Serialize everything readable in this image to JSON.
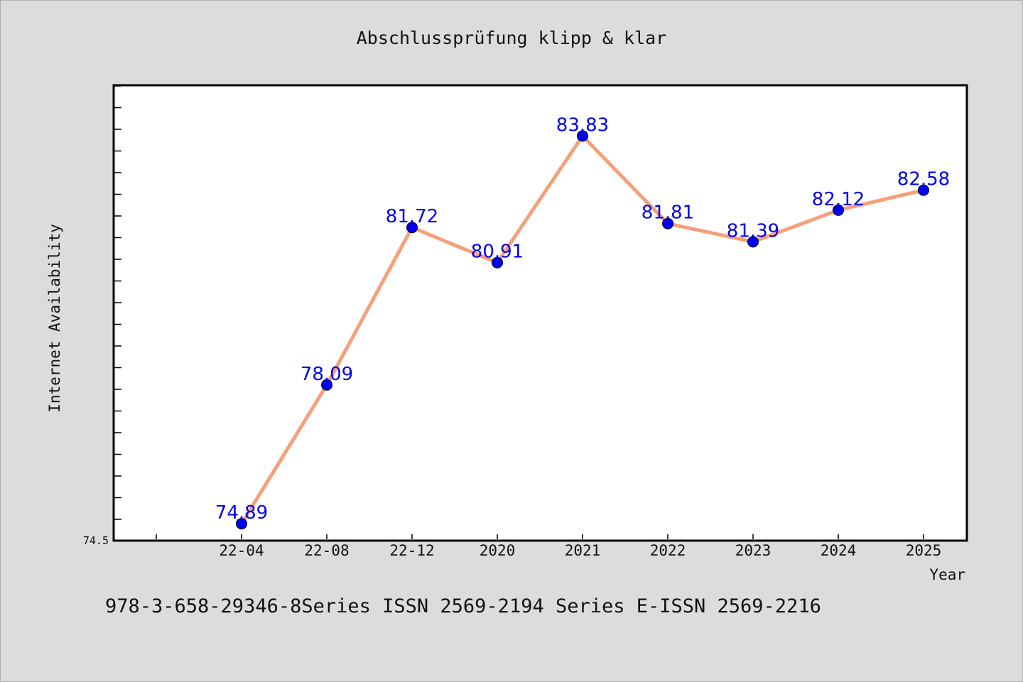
{
  "chart_data": {
    "type": "line",
    "title": "Abschlussprüfung klipp & klar",
    "xlabel": "Year",
    "ylabel": "Internet Availability",
    "categories": [
      "22-04",
      "22-08",
      "22-12",
      "2020",
      "2021",
      "2022",
      "2023",
      "2024",
      "2025"
    ],
    "values": [
      74.89,
      78.09,
      81.72,
      80.91,
      83.83,
      81.81,
      81.39,
      82.12,
      82.58
    ],
    "data_labels": [
      "74.89",
      "78.09",
      "81.72",
      "80.91",
      "83.83",
      "81.81",
      "81.39",
      "82.12",
      "82.58"
    ],
    "ylim": [
      74.5,
      85.0
    ],
    "y_tick_labels": [
      "74.5"
    ],
    "grid": false,
    "line_color": "#f5a07a",
    "marker_color": "#0000ee"
  },
  "footer": {
    "text": "978-3-658-29346-8Series ISSN 2569-2194 Series E-ISSN 2569-2216"
  }
}
